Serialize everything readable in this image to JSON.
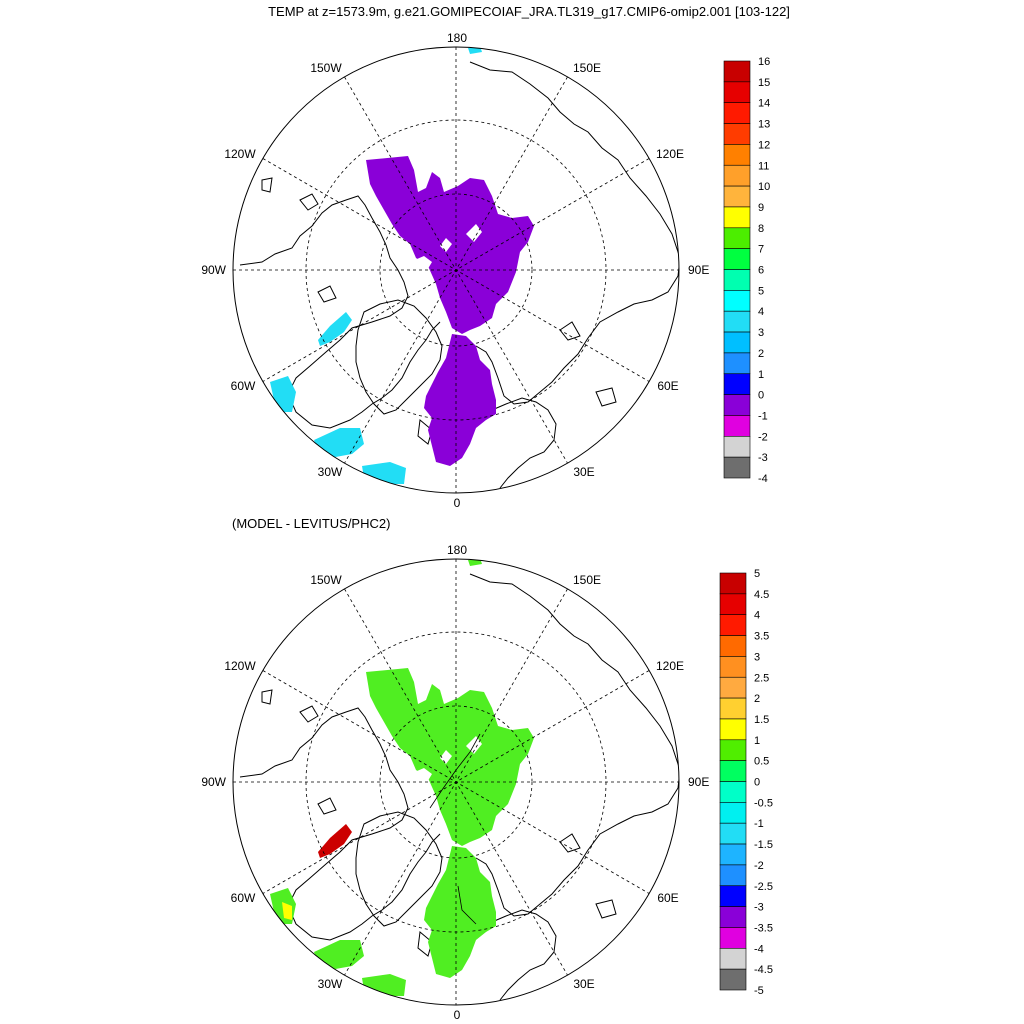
{
  "figure": {
    "title": "TEMP at z=1573.9m, g.e21.GOMIPECOIAF_JRA.TL319_g17.CMIP6-omip2.001 [103-122]",
    "panel2_title": "(MODEL - LEVITUS/PHC2)"
  },
  "map_labels": {
    "top": "180",
    "bottom": "0",
    "left": "90W",
    "right": "90E",
    "nw1": "150W",
    "nw2": "120W",
    "ne1": "150E",
    "ne2": "120E",
    "sw1": "60W",
    "sw2": "30W",
    "se1": "60E",
    "se2": "30E"
  },
  "colors": {
    "panel1_field": "#8a00d8",
    "panel1_cyan": "#22ddf5",
    "panel2_field": "#50ee22",
    "panel2_red": "#cc0000",
    "panel2_yellow": "#ffff00",
    "coast": "#000000",
    "grid": "#000000"
  },
  "chart_data": [
    {
      "type": "heatmap",
      "title": "TEMP at z=1573.9m, g.e21.GOMIPECOIAF_JRA.TL319_g17.CMIP6-omip2.001 [103-122]",
      "projection": "north-polar-stereographic",
      "legend_position": "right",
      "colorbar": {
        "labels": [
          "16",
          "15",
          "14",
          "13",
          "12",
          "11",
          "10",
          "9",
          "8",
          "7",
          "6",
          "5",
          "4",
          "3",
          "2",
          "1",
          "0",
          "-1",
          "-2",
          "-3",
          "-4"
        ],
        "colors": [
          "#c80000",
          "#e60000",
          "#ff1a00",
          "#ff3c00",
          "#ff8000",
          "#ffa02a",
          "#ffb43c",
          "#ffff00",
          "#4cee00",
          "#00ff40",
          "#00ffb0",
          "#00ffff",
          "#22ddf5",
          "#00bfff",
          "#1e90ff",
          "#0000ff",
          "#8a00d8",
          "#e000e0",
          "#d3d3d3",
          "#6e6e6e"
        ]
      }
    },
    {
      "type": "heatmap",
      "title": "(MODEL - LEVITUS/PHC2)",
      "projection": "north-polar-stereographic",
      "legend_position": "right",
      "colorbar": {
        "labels": [
          "5",
          "4.5",
          "4",
          "3.5",
          "3",
          "2.5",
          "2",
          "1.5",
          "1",
          "0.5",
          "0",
          "-0.5",
          "-1",
          "-1.5",
          "-2",
          "-2.5",
          "-3",
          "-3.5",
          "-4",
          "-4.5",
          "-5"
        ],
        "colors": [
          "#c80000",
          "#e60000",
          "#ff1a00",
          "#ff6a00",
          "#ff9020",
          "#ffaa40",
          "#ffd030",
          "#ffff00",
          "#50ee00",
          "#00ff60",
          "#00ffc8",
          "#00f0f0",
          "#22ddf5",
          "#1eb4ff",
          "#1e90ff",
          "#0000ff",
          "#8a00d8",
          "#e000e0",
          "#d3d3d3",
          "#6e6e6e"
        ]
      }
    }
  ]
}
